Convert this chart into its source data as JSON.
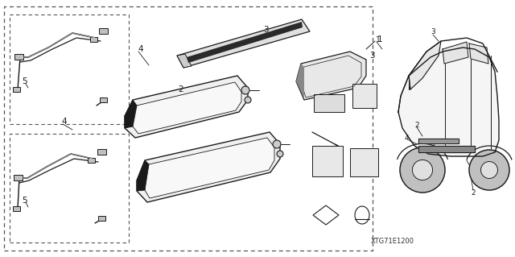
{
  "bg_color": "#ffffff",
  "line_color": "#1a1a1a",
  "dash_color": "#555555",
  "watermark": "XTG71E1200",
  "fig_width": 6.4,
  "fig_height": 3.19,
  "dpi": 100
}
